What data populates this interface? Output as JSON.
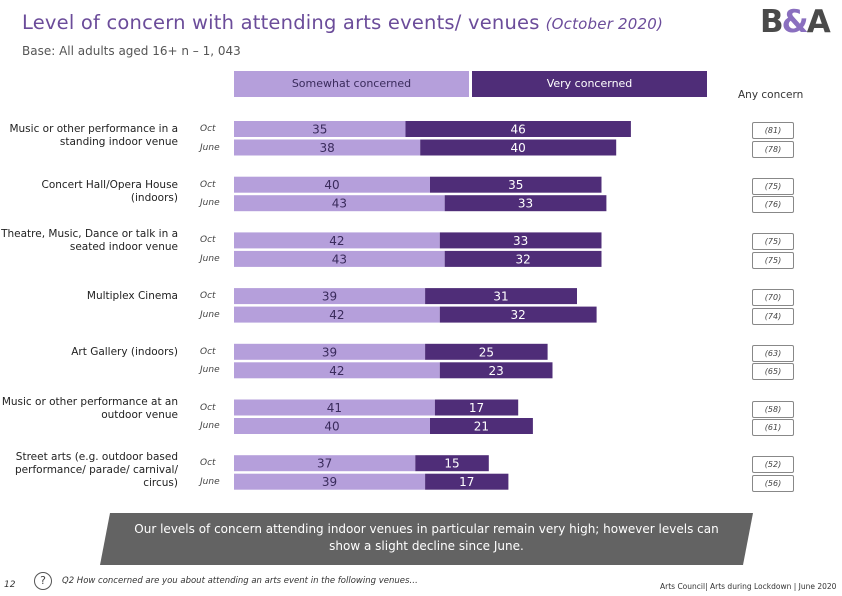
{
  "title": "Level of concern with attending arts events/ venues",
  "title_date": "(October 2020)",
  "logo": {
    "left": "B",
    "amp": "&",
    "right": "A"
  },
  "base_text": "Base: All adults aged 16+ n – 1, 043",
  "legend": {
    "somewhat": "Somewhat concerned",
    "very": "Very concerned",
    "any": "Any concern"
  },
  "colors": {
    "somewhat": "#b59fdb",
    "very": "#4f2d78"
  },
  "period_labels": {
    "oct": "Oct",
    "june": "June"
  },
  "chart_data": {
    "type": "bar",
    "orientation": "horizontal",
    "stacked": true,
    "title": "Level of concern with attending arts events/ venues (October 2020)",
    "xlim": [
      0,
      100
    ],
    "series": [
      {
        "name": "Somewhat concerned",
        "color": "#b59fdb"
      },
      {
        "name": "Very concerned",
        "color": "#4f2d78"
      }
    ],
    "categories": [
      {
        "label": "Music or other performance in a standing indoor venue",
        "oct": {
          "somewhat": 35,
          "very": 46,
          "any": "(81)"
        },
        "june": {
          "somewhat": 38,
          "very": 40,
          "any": "(78)"
        }
      },
      {
        "label": "Concert Hall/Opera House (indoors)",
        "oct": {
          "somewhat": 40,
          "very": 35,
          "any": "(75)"
        },
        "june": {
          "somewhat": 43,
          "very": 33,
          "any": "(76)"
        }
      },
      {
        "label": "Theatre, Music, Dance or talk in a seated indoor venue",
        "oct": {
          "somewhat": 42,
          "very": 33,
          "any": "(75)"
        },
        "june": {
          "somewhat": 43,
          "very": 32,
          "any": "(75)"
        }
      },
      {
        "label": "Multiplex Cinema",
        "oct": {
          "somewhat": 39,
          "very": 31,
          "any": "(70)"
        },
        "june": {
          "somewhat": 42,
          "very": 32,
          "any": "(74)"
        }
      },
      {
        "label": "Art Gallery (indoors)",
        "oct": {
          "somewhat": 39,
          "very": 25,
          "any": "(63)"
        },
        "june": {
          "somewhat": 42,
          "very": 23,
          "any": "(65)"
        }
      },
      {
        "label": "Music or other performance at an outdoor venue",
        "oct": {
          "somewhat": 41,
          "very": 17,
          "any": "(58)"
        },
        "june": {
          "somewhat": 40,
          "very": 21,
          "any": "(61)"
        }
      },
      {
        "label": "Street arts (e.g. outdoor based performance/ parade/ carnival/ circus)",
        "oct": {
          "somewhat": 37,
          "very": 15,
          "any": "(52)"
        },
        "june": {
          "somewhat": 39,
          "very": 17,
          "any": "(56)"
        }
      }
    ]
  },
  "banner_text": "Our levels of concern attending indoor venues in particular remain very high; however levels can show a slight decline since June.",
  "page_number": "12",
  "question_icon": "?",
  "question_text": "Q2 How concerned are you about attending an arts event in the following venues…",
  "footer_right": "Arts Council| Arts during Lockdown | June 2020"
}
